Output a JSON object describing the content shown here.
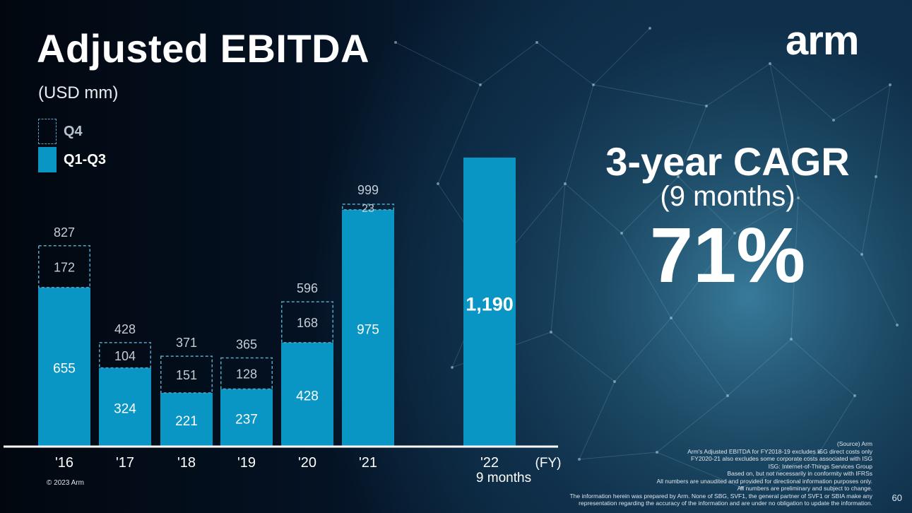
{
  "slide": {
    "title": "Adjusted EBITDA",
    "logo": "arm",
    "unit": "(USD mm)",
    "copyright": "© 2023 Arm",
    "page_number": "60"
  },
  "legend": [
    {
      "label": "Q4",
      "style": "dashed"
    },
    {
      "label": "Q1-Q3",
      "style": "solid"
    }
  ],
  "cagr": {
    "title": "3-year CAGR",
    "subtitle": "(9 months)",
    "value": "71%"
  },
  "notes": [
    "(Source) Arm",
    "Arm's Adjusted EBITDA for FY2018-19 excludes ISG direct costs only",
    "FY2020-21 also excludes some corporate costs associated with ISG",
    "ISG: Internet-of-Things Services Group",
    "Based on, but not necessarily in conformity with IFRSs",
    "All numbers are unaudited and provided for directional information purposes only.",
    "All numbers are preliminary and subject to change.",
    "The information herein was prepared by Arm. None of SBG, SVF1, the general partner of SVF1 or SBIA make any",
    "representation regarding the accuracy of the information and are under no obligation to update the information."
  ],
  "colors": {
    "bar": "#0a96c4",
    "q4_outline": "#57a7c4",
    "q4_text": "#c4ccd4",
    "total_text": "#c4ccd4",
    "axis": "#ffffff"
  },
  "chart_data": {
    "type": "bar",
    "stacked": true,
    "x_axis_label": "(FY)",
    "categories": [
      "'16",
      "'17",
      "'18",
      "'19",
      "'20",
      "'21",
      "'22"
    ],
    "category_sublabels": [
      "",
      "",
      "",
      "",
      "",
      "",
      "9 months"
    ],
    "series": [
      {
        "name": "Q1-Q3",
        "values": [
          655,
          324,
          221,
          237,
          428,
          975,
          1190
        ]
      },
      {
        "name": "Q4",
        "values": [
          172,
          104,
          151,
          128,
          168,
          23,
          null
        ]
      }
    ],
    "totals": [
      827,
      428,
      371,
      365,
      596,
      999,
      null
    ],
    "value_labels": {
      "q13": [
        "655",
        "324",
        "221",
        "237",
        "428",
        "975",
        "1,190"
      ],
      "q4": [
        "172",
        "104",
        "151",
        "128",
        "168",
        "23",
        ""
      ],
      "totals": [
        "827",
        "428",
        "371",
        "365",
        "596",
        "999",
        ""
      ]
    },
    "ylim": [
      0,
      1300
    ]
  }
}
